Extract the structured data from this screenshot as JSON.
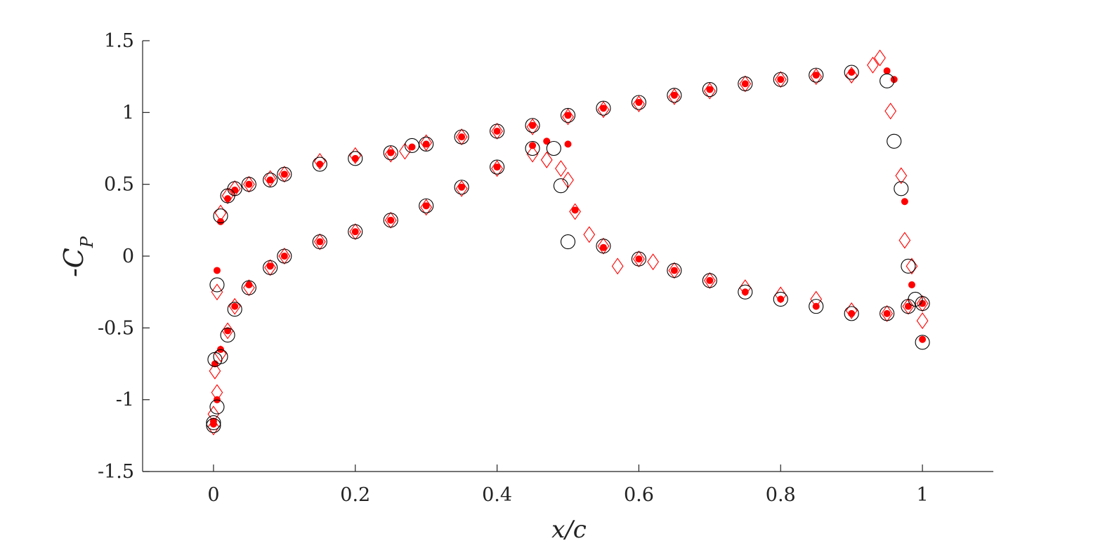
{
  "chart_data": {
    "type": "scatter",
    "xlabel": "x/c",
    "ylabel": "-C_P",
    "xlim": [
      -0.1,
      1.1
    ],
    "ylim": [
      -1.5,
      1.5
    ],
    "x_ticks": [
      0,
      0.2,
      0.4,
      0.6,
      0.8,
      1
    ],
    "x_tick_labels": [
      "0",
      "0.2",
      "0.4",
      "0.6",
      "0.8",
      "1"
    ],
    "y_ticks": [
      -1.5,
      -1,
      -0.5,
      0,
      0.5,
      1,
      1.5
    ],
    "y_tick_labels": [
      "-1.5",
      "-1",
      "-0.5",
      "0",
      "0.5",
      "1",
      "1.5"
    ],
    "grid": false,
    "series": [
      {
        "marker": "open-circle",
        "color": "#000000",
        "upper": {
          "x": [
            0,
            0.002,
            0.005,
            0.01,
            0.02,
            0.03,
            0.05,
            0.08,
            0.1,
            0.15,
            0.2,
            0.25,
            0.28,
            0.3,
            0.35,
            0.4,
            0.45,
            0.5,
            0.55,
            0.6,
            0.65,
            0.7,
            0.75,
            0.8,
            0.85,
            0.9,
            0.95,
            0.96,
            0.97,
            0.98,
            0.99,
            1.0
          ],
          "y": [
            -1.16,
            -0.72,
            -0.2,
            0.28,
            0.42,
            0.47,
            0.5,
            0.53,
            0.57,
            0.64,
            0.68,
            0.72,
            0.77,
            0.78,
            0.83,
            0.87,
            0.91,
            0.98,
            1.03,
            1.07,
            1.12,
            1.16,
            1.2,
            1.23,
            1.26,
            1.28,
            1.22,
            0.8,
            0.47,
            -0.07,
            -0.3,
            -0.6
          ]
        },
        "lower": {
          "x": [
            0,
            0.005,
            0.01,
            0.02,
            0.03,
            0.05,
            0.08,
            0.1,
            0.15,
            0.2,
            0.25,
            0.3,
            0.35,
            0.4,
            0.45,
            0.48,
            0.49,
            0.5,
            0.55,
            0.6,
            0.65,
            0.7,
            0.75,
            0.8,
            0.85,
            0.9,
            0.95,
            0.98,
            1.0
          ],
          "y": [
            -1.18,
            -1.05,
            -0.7,
            -0.55,
            -0.37,
            -0.22,
            -0.08,
            0.0,
            0.1,
            0.17,
            0.25,
            0.35,
            0.48,
            0.62,
            0.75,
            0.75,
            0.49,
            0.1,
            0.07,
            -0.02,
            -0.1,
            -0.17,
            -0.25,
            -0.3,
            -0.35,
            -0.4,
            -0.4,
            -0.35,
            -0.33
          ]
        }
      },
      {
        "marker": "filled-dot",
        "color": "#ff0000",
        "upper": {
          "x": [
            0,
            0.002,
            0.005,
            0.01,
            0.02,
            0.03,
            0.05,
            0.08,
            0.1,
            0.15,
            0.2,
            0.25,
            0.28,
            0.3,
            0.35,
            0.4,
            0.45,
            0.5,
            0.55,
            0.6,
            0.65,
            0.7,
            0.75,
            0.8,
            0.85,
            0.9,
            0.95,
            0.96,
            0.975,
            0.985,
            1.0
          ],
          "y": [
            -1.17,
            -0.75,
            -0.1,
            0.24,
            0.4,
            0.46,
            0.5,
            0.53,
            0.57,
            0.64,
            0.68,
            0.72,
            0.76,
            0.78,
            0.83,
            0.87,
            0.91,
            0.98,
            1.03,
            1.07,
            1.12,
            1.16,
            1.2,
            1.23,
            1.26,
            1.28,
            1.29,
            1.23,
            0.38,
            -0.2,
            -0.58
          ]
        },
        "lower": {
          "x": [
            0,
            0.005,
            0.01,
            0.02,
            0.03,
            0.05,
            0.08,
            0.1,
            0.15,
            0.2,
            0.25,
            0.3,
            0.35,
            0.4,
            0.45,
            0.47,
            0.5,
            0.51,
            0.55,
            0.6,
            0.65,
            0.7,
            0.75,
            0.8,
            0.85,
            0.9,
            0.95,
            0.98,
            1.0
          ],
          "y": [
            -1.15,
            -1.0,
            -0.65,
            -0.52,
            -0.35,
            -0.2,
            -0.07,
            0.0,
            0.1,
            0.17,
            0.25,
            0.35,
            0.48,
            0.62,
            0.77,
            0.8,
            0.78,
            0.32,
            0.06,
            -0.02,
            -0.1,
            -0.17,
            -0.25,
            -0.3,
            -0.35,
            -0.4,
            -0.4,
            -0.35,
            -0.33
          ]
        }
      },
      {
        "marker": "open-diamond",
        "color": "#ff0000",
        "upper": {
          "x": [
            0,
            0.002,
            0.005,
            0.01,
            0.02,
            0.03,
            0.05,
            0.08,
            0.1,
            0.15,
            0.2,
            0.25,
            0.27,
            0.3,
            0.35,
            0.4,
            0.45,
            0.5,
            0.55,
            0.6,
            0.65,
            0.7,
            0.75,
            0.8,
            0.85,
            0.9,
            0.93,
            0.94,
            0.955,
            0.97,
            0.975,
            0.985,
            1.0
          ],
          "y": [
            -1.19,
            -0.8,
            -0.25,
            0.3,
            0.42,
            0.47,
            0.5,
            0.54,
            0.57,
            0.66,
            0.7,
            0.71,
            0.73,
            0.79,
            0.83,
            0.87,
            0.9,
            0.97,
            1.02,
            1.06,
            1.11,
            1.15,
            1.2,
            1.23,
            1.25,
            1.26,
            1.33,
            1.38,
            1.01,
            0.56,
            0.11,
            -0.07,
            -0.45
          ]
        },
        "lower": {
          "x": [
            0,
            0.005,
            0.01,
            0.02,
            0.03,
            0.05,
            0.08,
            0.1,
            0.15,
            0.2,
            0.25,
            0.3,
            0.35,
            0.4,
            0.45,
            0.47,
            0.49,
            0.5,
            0.51,
            0.53,
            0.55,
            0.57,
            0.6,
            0.62,
            0.65,
            0.7,
            0.75,
            0.8,
            0.85,
            0.9,
            0.95,
            0.98,
            1.0
          ],
          "y": [
            -1.1,
            -0.95,
            -0.68,
            -0.52,
            -0.35,
            -0.22,
            -0.08,
            0.0,
            0.1,
            0.17,
            0.25,
            0.34,
            0.47,
            0.61,
            0.71,
            0.67,
            0.61,
            0.53,
            0.31,
            0.15,
            0.07,
            -0.07,
            -0.02,
            -0.04,
            -0.1,
            -0.17,
            -0.22,
            -0.27,
            -0.3,
            -0.38,
            -0.4,
            -0.35,
            -0.33
          ]
        }
      }
    ]
  }
}
